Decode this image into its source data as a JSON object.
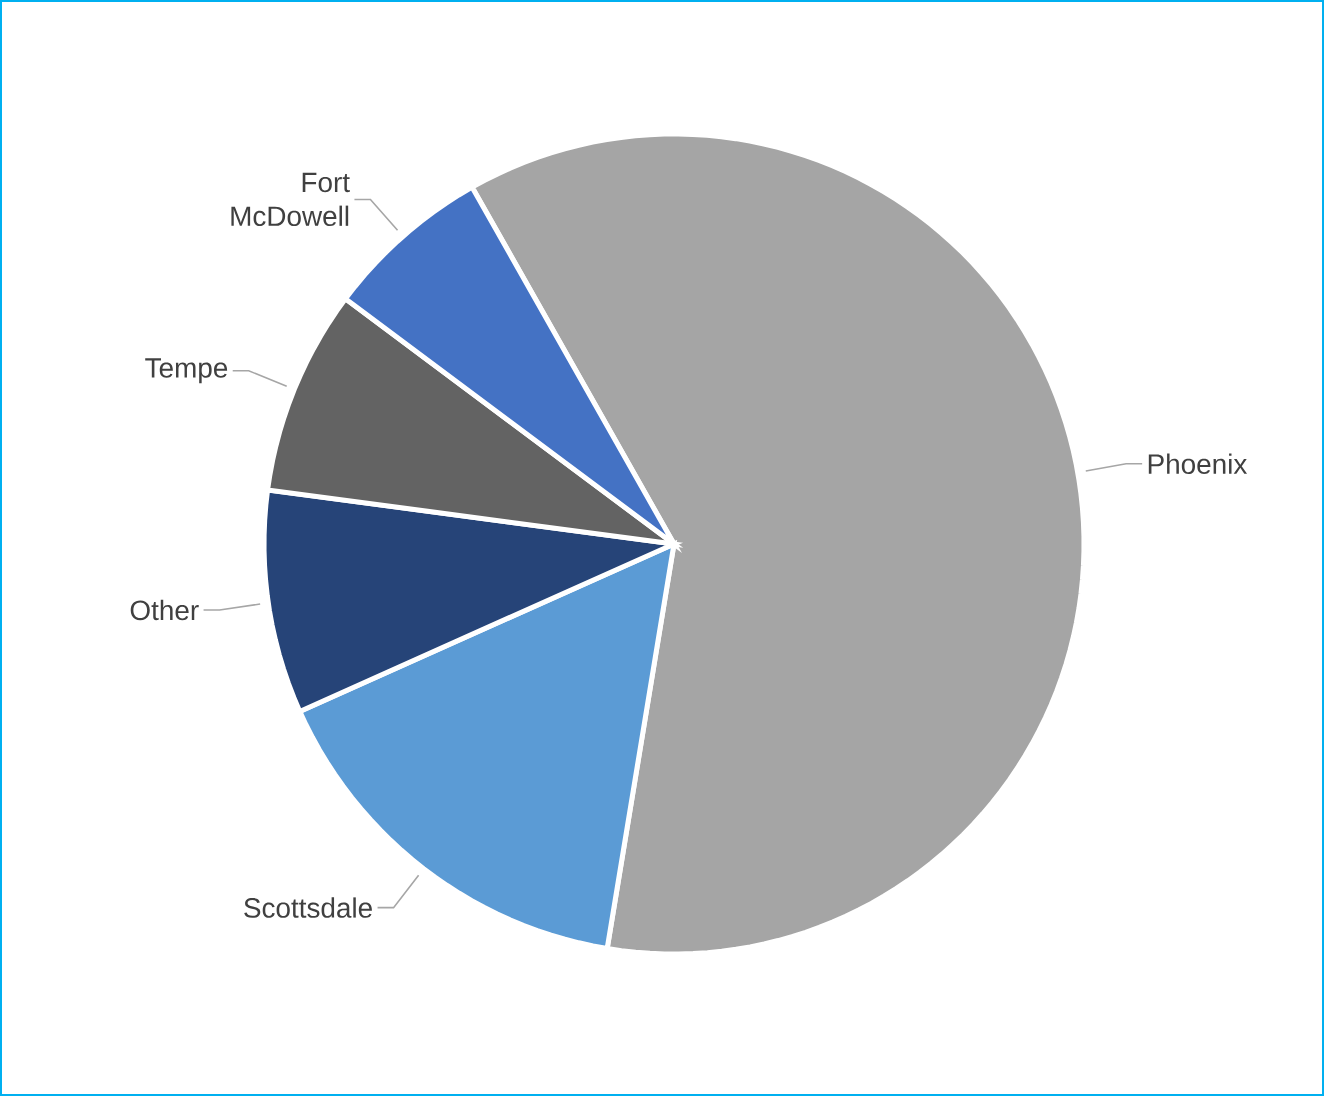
{
  "chart_data": {
    "type": "pie",
    "categories": [
      "Phoenix",
      "Scottsdale",
      "Other",
      "Tempe",
      "Fort McDowell"
    ],
    "values": [
      60.8,
      15.7,
      8.8,
      8.1,
      6.6
    ],
    "colors": [
      "#a5a5a5",
      "#5b9bd5",
      "#264478",
      "#636363",
      "#4472c4"
    ]
  }
}
